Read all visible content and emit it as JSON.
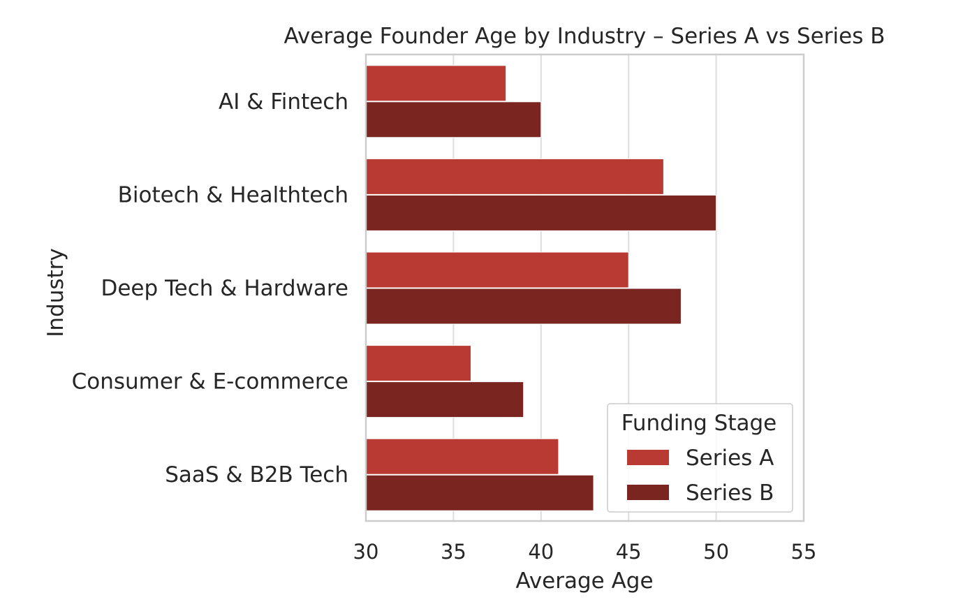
{
  "chart_data": {
    "type": "bar",
    "orientation": "horizontal",
    "title": "Average Founder Age by Industry – Series A vs Series B",
    "xlabel": "Average Age",
    "ylabel": "Industry",
    "xlim": [
      30,
      55
    ],
    "xticks": [
      "30",
      "35",
      "40",
      "45",
      "50",
      "55"
    ],
    "grid": "vertical",
    "categories": [
      "AI & Fintech",
      "Biotech & Healthtech",
      "Deep Tech & Hardware",
      "Consumer & E-commerce",
      "SaaS & B2B Tech"
    ],
    "series": [
      {
        "name": "Series A",
        "color": "#b93a32",
        "values": [
          38,
          47,
          45,
          36,
          41
        ]
      },
      {
        "name": "Series B",
        "color": "#7a2520",
        "values": [
          40,
          50,
          48,
          39,
          43
        ]
      }
    ],
    "legend": {
      "title": "Funding Stage",
      "position": "lower right"
    }
  }
}
